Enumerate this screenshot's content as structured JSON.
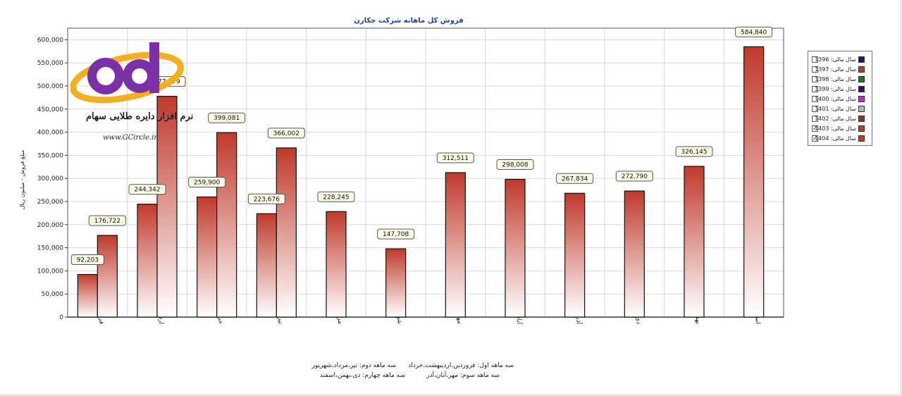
{
  "chart_data": {
    "type": "bar",
    "title": "فروش کل ماهانه شرکت چکارن",
    "ylabel": "مبلغ فروش - میلیون ریال",
    "xlabel": "",
    "ylim": [
      0,
      625000
    ],
    "yticks": [
      0,
      50000,
      100000,
      150000,
      200000,
      250000,
      300000,
      350000,
      400000,
      450000,
      500000,
      550000,
      600000
    ],
    "ytick_labels": [
      "0",
      "50,000",
      "100,000",
      "150,000",
      "200,000",
      "250,000",
      "300,000",
      "350,000",
      "400,000",
      "450,000",
      "500,000",
      "550,000",
      "600,000"
    ],
    "categories": [
      "فروردین",
      "اردیبهشت",
      "خرداد",
      "تیر",
      "مرداد",
      "شهریور",
      "مهر",
      "آبان",
      "آذر",
      "دی",
      "بهمن",
      "اسفند"
    ],
    "series": [
      {
        "name": "سال مالی: 1403",
        "values": [
          92203,
          244342,
          259900,
          223676,
          228245,
          147708,
          312511,
          298008,
          267834,
          272790,
          326145,
          584840
        ],
        "labels": [
          "92,203",
          "244,342",
          "259,900",
          "223,676",
          "228,245",
          "147,708",
          "312,511",
          "298,008",
          "267,834",
          "272,790",
          "326,145",
          "584,840"
        ]
      },
      {
        "name": "سال مالی: 1404",
        "values": [
          176722,
          477679,
          399081,
          366002,
          null,
          null,
          null,
          null,
          null,
          null,
          null,
          null
        ],
        "labels": [
          "176,722",
          "477,679",
          "399,081",
          "366,002",
          "",
          "",
          "",
          "",
          "",
          "",
          "",
          ""
        ]
      }
    ],
    "legend_position": "right",
    "grid": true
  },
  "legend": {
    "items": [
      {
        "label": "سال مالی: 1396",
        "checked": false,
        "color": "#0b1f6e"
      },
      {
        "label": "سال مالی: 1397",
        "checked": false,
        "color": "#c0392b"
      },
      {
        "label": "سال مالی: 1398",
        "checked": false,
        "color": "#1e7a1e"
      },
      {
        "label": "سال مالی: 1399",
        "checked": false,
        "color": "#3c0a66"
      },
      {
        "label": "سال مالی: 1400",
        "checked": false,
        "color": "#d81bd8"
      },
      {
        "label": "سال مالی: 1401",
        "checked": false,
        "color": "#b8b8b8"
      },
      {
        "label": "سال مالی: 1402",
        "checked": false,
        "color": "#8b3a2a"
      },
      {
        "label": "سال مالی: 1403",
        "checked": true,
        "color": "#c0392b"
      },
      {
        "label": "سال مالی: 1404",
        "checked": true,
        "color": "#c0392b"
      }
    ]
  },
  "footnotes": {
    "q1": "سه ماهه اول: فروردین،اردیبهشت،خرداد",
    "q2": "سه ماهه دوم: تیر،مرداد،شهریور",
    "q3": "سه ماهه سوم: مهر،آبان،آذر",
    "q4": "سه ماهه چهارم: دی،بهمن،اسفند"
  },
  "watermark": {
    "brand": "نرم افزار دایره طلایی سهام",
    "url": "www.GCircle.ir"
  },
  "colors": {
    "bar_dark": "#c0392b",
    "bar_light": "#ffffff",
    "title": "#1f3fa0",
    "grid": "#d8d8d8"
  }
}
